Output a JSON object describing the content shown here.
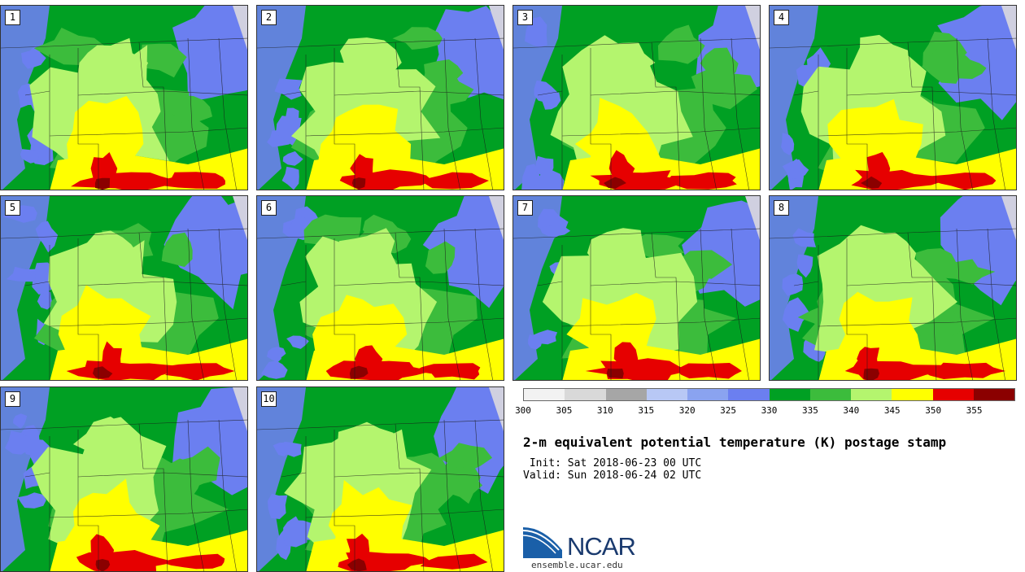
{
  "panels": [
    {
      "label": "1"
    },
    {
      "label": "2"
    },
    {
      "label": "3"
    },
    {
      "label": "4"
    },
    {
      "label": "5"
    },
    {
      "label": "6"
    },
    {
      "label": "7"
    },
    {
      "label": "8"
    },
    {
      "label": "9"
    },
    {
      "label": "10"
    }
  ],
  "colorbar": {
    "ticks": [
      "300",
      "305",
      "310",
      "315",
      "320",
      "325",
      "330",
      "335",
      "340",
      "345",
      "350",
      "355"
    ],
    "colors": [
      "#f2f2f2",
      "#d9d9d9",
      "#a6a6a6",
      "#b8c8f5",
      "#8aa3f0",
      "#6b7ff0",
      "#00a023",
      "#3cbc3c",
      "#b4f56e",
      "#ffff00",
      "#e60000",
      "#8b0000"
    ]
  },
  "title": "2-m equivalent potential temperature (K) postage stamp",
  "init": " Init: Sat 2018-06-23 00 UTC",
  "valid": "Valid: Sun 2018-06-24 02 UTC",
  "logo": {
    "name": "NCAR",
    "url": "ensemble.ucar.edu"
  }
}
